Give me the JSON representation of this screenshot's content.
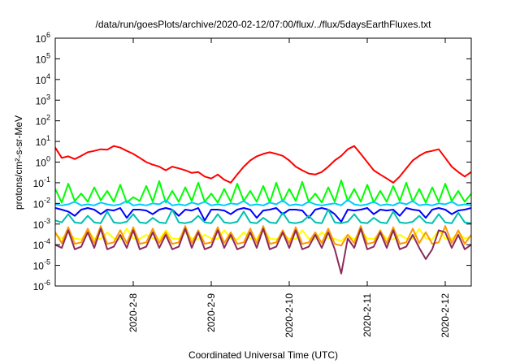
{
  "chart_data": {
    "type": "line",
    "title": "/data/run/goesPlots/archive/2020-02-12/07:00/flux/../flux/5daysEarthFluxes.txt",
    "xlabel": "Coordinated Universal Time (UTC)",
    "ylabel": "protons/cm²-s-sr-MeV",
    "yscale": "log",
    "grid": false,
    "xlim": [
      "2020-02-07 00:00",
      "2020-02-12 08:00"
    ],
    "ylim": [
      1e-06,
      1000000
    ],
    "x_ticks": [
      {
        "value": "2020-02-08 00:00",
        "label": "2020-2-8"
      },
      {
        "value": "2020-02-09 00:00",
        "label": "2020-2-9"
      },
      {
        "value": "2020-02-10 00:00",
        "label": "2020-2-10"
      },
      {
        "value": "2020-02-11 00:00",
        "label": "2020-2-11"
      },
      {
        "value": "2020-02-12 00:00",
        "label": "2020-2-12"
      }
    ],
    "y_ticks": [
      {
        "value": 1000000,
        "base": "10",
        "exp": "6"
      },
      {
        "value": 100000,
        "base": "10",
        "exp": "5"
      },
      {
        "value": 10000,
        "base": "10",
        "exp": "4"
      },
      {
        "value": 1000,
        "base": "10",
        "exp": "3"
      },
      {
        "value": 100,
        "base": "10",
        "exp": "2"
      },
      {
        "value": 10,
        "base": "10",
        "exp": "1"
      },
      {
        "value": 1,
        "base": "10",
        "exp": "0"
      },
      {
        "value": 0.1,
        "base": "10",
        "exp": "-1"
      },
      {
        "value": 0.01,
        "base": "10",
        "exp": "-2"
      },
      {
        "value": 0.001,
        "base": "10",
        "exp": "-3"
      },
      {
        "value": 0.0001,
        "base": "10",
        "exp": "-4"
      },
      {
        "value": 1e-05,
        "base": "10",
        "exp": "-5"
      },
      {
        "value": 1e-06,
        "base": "10",
        "exp": "-6"
      }
    ],
    "x": [
      "2020-02-07 00:00",
      "2020-02-07 02:00",
      "2020-02-07 04:00",
      "2020-02-07 06:00",
      "2020-02-07 08:00",
      "2020-02-07 10:00",
      "2020-02-07 12:00",
      "2020-02-07 14:00",
      "2020-02-07 16:00",
      "2020-02-07 18:00",
      "2020-02-07 20:00",
      "2020-02-07 22:00",
      "2020-02-08 00:00",
      "2020-02-08 02:00",
      "2020-02-08 04:00",
      "2020-02-08 06:00",
      "2020-02-08 08:00",
      "2020-02-08 10:00",
      "2020-02-08 12:00",
      "2020-02-08 14:00",
      "2020-02-08 16:00",
      "2020-02-08 18:00",
      "2020-02-08 20:00",
      "2020-02-08 22:00",
      "2020-02-09 00:00",
      "2020-02-09 02:00",
      "2020-02-09 04:00",
      "2020-02-09 06:00",
      "2020-02-09 08:00",
      "2020-02-09 10:00",
      "2020-02-09 12:00",
      "2020-02-09 14:00",
      "2020-02-09 16:00",
      "2020-02-09 18:00",
      "2020-02-09 20:00",
      "2020-02-09 22:00",
      "2020-02-10 00:00",
      "2020-02-10 02:00",
      "2020-02-10 04:00",
      "2020-02-10 06:00",
      "2020-02-10 08:00",
      "2020-02-10 10:00",
      "2020-02-10 12:00",
      "2020-02-10 14:00",
      "2020-02-10 16:00",
      "2020-02-10 18:00",
      "2020-02-10 20:00",
      "2020-02-10 22:00",
      "2020-02-11 00:00",
      "2020-02-11 02:00",
      "2020-02-11 04:00",
      "2020-02-11 06:00",
      "2020-02-11 08:00",
      "2020-02-11 10:00",
      "2020-02-11 12:00",
      "2020-02-11 14:00",
      "2020-02-11 16:00",
      "2020-02-11 18:00",
      "2020-02-11 20:00",
      "2020-02-11 22:00",
      "2020-02-12 00:00",
      "2020-02-12 02:00",
      "2020-02-12 04:00",
      "2020-02-12 06:00",
      "2020-02-12 08:00"
    ],
    "series": [
      {
        "color": "#00ff00",
        "values": [
          0.05,
          0.011,
          0.09,
          0.013,
          0.03,
          0.012,
          0.06,
          0.014,
          0.04,
          0.012,
          0.08,
          0.011,
          0.02,
          0.013,
          0.07,
          0.012,
          0.12,
          0.011,
          0.04,
          0.012,
          0.06,
          0.013,
          0.1,
          0.012,
          0.03,
          0.011,
          0.05,
          0.012,
          0.09,
          0.013,
          0.04,
          0.012,
          0.07,
          0.011,
          0.1,
          0.012,
          0.05,
          0.013,
          0.11,
          0.012,
          0.03,
          0.011,
          0.06,
          0.012,
          0.13,
          0.013,
          0.05,
          0.012,
          0.08,
          0.011,
          0.04,
          0.012,
          0.07,
          0.013,
          0.1,
          0.012,
          0.05,
          0.011,
          0.06,
          0.012,
          0.09,
          0.013,
          0.04,
          0.012,
          0.03
        ]
      },
      {
        "color": "#00ccff",
        "values": [
          0.009,
          0.008,
          0.009,
          0.012,
          0.008,
          0.009,
          0.008,
          0.011,
          0.009,
          0.008,
          0.009,
          0.013,
          0.008,
          0.009,
          0.008,
          0.01,
          0.009,
          0.014,
          0.008,
          0.009,
          0.008,
          0.011,
          0.009,
          0.012,
          0.008,
          0.009,
          0.008,
          0.01,
          0.009,
          0.013,
          0.008,
          0.009,
          0.008,
          0.011,
          0.009,
          0.014,
          0.008,
          0.009,
          0.008,
          0.012,
          0.009,
          0.008,
          0.009,
          0.01,
          0.008,
          0.015,
          0.009,
          0.008,
          0.009,
          0.012,
          0.008,
          0.009,
          0.008,
          0.011,
          0.009,
          0.013,
          0.008,
          0.009,
          0.008,
          0.01,
          0.009,
          0.012,
          0.008,
          0.009,
          0.008
        ]
      },
      {
        "color": "#0000ff",
        "values": [
          0.006,
          0.005,
          0.004,
          0.0025,
          0.005,
          0.006,
          0.005,
          0.003,
          0.005,
          0.0045,
          0.006,
          0.002,
          0.005,
          0.005,
          0.0045,
          0.003,
          0.005,
          0.006,
          0.005,
          0.0025,
          0.005,
          0.0045,
          0.006,
          0.0015,
          0.005,
          0.005,
          0.0045,
          0.003,
          0.005,
          0.006,
          0.005,
          0.002,
          0.0045,
          0.005,
          0.006,
          0.003,
          0.005,
          0.005,
          0.0045,
          0.002,
          0.005,
          0.006,
          0.005,
          0.003,
          0.0013,
          0.005,
          0.0045,
          0.005,
          0.006,
          0.003,
          0.005,
          0.0045,
          0.005,
          0.0025,
          0.006,
          0.005,
          0.0045,
          0.002,
          0.005,
          0.006,
          0.005,
          0.003,
          0.0045,
          0.005,
          0.006
        ]
      },
      {
        "color": "#00c0b0",
        "values": [
          0.0015,
          0.0012,
          0.003,
          0.0012,
          0.0011,
          0.0025,
          0.0012,
          0.0011,
          0.004,
          0.0012,
          0.0011,
          0.0013,
          0.003,
          0.0012,
          0.0011,
          0.002,
          0.0012,
          0.0011,
          0.005,
          0.0012,
          0.0011,
          0.0013,
          0.0025,
          0.0012,
          0.0011,
          0.003,
          0.0012,
          0.0011,
          0.0013,
          0.004,
          0.0012,
          0.0011,
          0.002,
          0.0012,
          0.0011,
          0.0035,
          0.0012,
          0.0011,
          0.0013,
          0.0025,
          0.0012,
          0.0011,
          0.005,
          0.0012,
          0.0011,
          0.0013,
          0.003,
          0.0012,
          0.0011,
          0.002,
          0.0012,
          0.0011,
          0.004,
          0.0012,
          0.0011,
          0.0013,
          0.0025,
          0.0012,
          0.0011,
          0.003,
          0.0012,
          0.0011,
          0.0035,
          0.0012,
          0.0011
        ]
      },
      {
        "color": "#ffff00",
        "values": [
          0.0003,
          0.0002,
          0.0004,
          0.0002,
          0.00018,
          0.0005,
          0.0002,
          0.00019,
          0.0004,
          0.0002,
          0.00018,
          0.0006,
          0.0002,
          0.00019,
          0.0003,
          0.0002,
          0.00018,
          0.0005,
          0.0002,
          0.00019,
          0.0004,
          0.0002,
          0.00018,
          0.0003,
          0.0002,
          0.00019,
          0.0005,
          0.0002,
          0.00018,
          0.0004,
          0.0002,
          0.00019,
          0.0006,
          0.0002,
          0.00018,
          0.0003,
          0.0002,
          0.00019,
          0.0005,
          0.0002,
          0.00018,
          0.0004,
          0.0002,
          0.00019,
          0.00015,
          0.0003,
          0.00018,
          0.0005,
          0.0002,
          0.00019,
          0.0004,
          0.0002,
          0.00018,
          0.0003,
          0.0002,
          0.00019,
          0.0006,
          0.0002,
          0.00018,
          0.0005,
          0.0002,
          0.00019,
          0.0004,
          0.0002,
          0.00025
        ]
      },
      {
        "color": "#ff9900",
        "values": [
          0.0004,
          0.00012,
          0.0007,
          0.00011,
          0.00013,
          0.0006,
          0.00012,
          0.0008,
          0.00011,
          0.00013,
          0.0005,
          0.00012,
          0.0007,
          0.00011,
          0.00013,
          0.0006,
          0.00012,
          0.0004,
          0.00011,
          0.00013,
          0.0008,
          0.00012,
          0.0005,
          0.00011,
          0.00013,
          0.0007,
          0.00012,
          0.0004,
          0.00011,
          0.00013,
          0.0006,
          0.00012,
          0.0008,
          0.00011,
          0.00013,
          0.0005,
          0.00012,
          0.0007,
          0.00011,
          0.00013,
          0.0004,
          0.00012,
          0.0006,
          0.00011,
          9e-05,
          0.0003,
          0.00012,
          0.0008,
          0.00011,
          0.00013,
          0.0005,
          0.00012,
          0.0007,
          0.00011,
          0.00013,
          0.0006,
          0.00012,
          0.0004,
          0.00011,
          0.00013,
          0.0008,
          0.00012,
          0.0005,
          0.00011,
          0.0003
        ]
      },
      {
        "color": "#8b2a5a",
        "values": [
          0.0001,
          7e-05,
          0.0005,
          6e-05,
          8e-05,
          0.0004,
          7e-05,
          0.0006,
          6e-05,
          8e-05,
          0.0003,
          7e-05,
          0.0005,
          6e-05,
          8e-05,
          0.0004,
          7e-05,
          0.0003,
          6e-05,
          8e-05,
          0.0006,
          7e-05,
          0.0004,
          6e-05,
          8e-05,
          0.0005,
          7e-05,
          0.0003,
          6e-05,
          8e-05,
          0.0004,
          7e-05,
          0.0006,
          6e-05,
          8e-05,
          0.0004,
          7e-05,
          0.0005,
          6e-05,
          8e-05,
          0.0003,
          7e-05,
          0.0004,
          6e-05,
          4e-06,
          0.0002,
          7e-05,
          0.0006,
          6e-05,
          8e-05,
          0.0004,
          7e-05,
          0.0005,
          6e-05,
          8e-05,
          0.0003,
          7e-05,
          2e-05,
          6e-05,
          0.0005,
          0.0004,
          7e-05,
          0.0003,
          6e-05,
          0.0001
        ]
      },
      {
        "color": "#ff0000",
        "values": [
          5,
          1.6,
          1.9,
          1.4,
          2,
          3,
          3.5,
          4.2,
          4,
          6,
          5,
          3.5,
          2.5,
          1.6,
          1,
          0.75,
          0.6,
          0.4,
          0.6,
          0.5,
          0.4,
          0.3,
          0.33,
          0.2,
          0.16,
          0.25,
          0.14,
          0.1,
          0.25,
          0.6,
          1.2,
          1.9,
          2.5,
          3,
          2.5,
          2,
          1.2,
          0.6,
          0.4,
          0.28,
          0.25,
          0.33,
          0.6,
          1.2,
          2,
          4.2,
          6,
          2.5,
          1,
          0.4,
          0.25,
          0.16,
          0.1,
          0.2,
          0.5,
          1.2,
          2,
          3,
          3.5,
          4.2,
          1.6,
          0.6,
          0.33,
          0.2,
          0.33
        ]
      }
    ]
  }
}
